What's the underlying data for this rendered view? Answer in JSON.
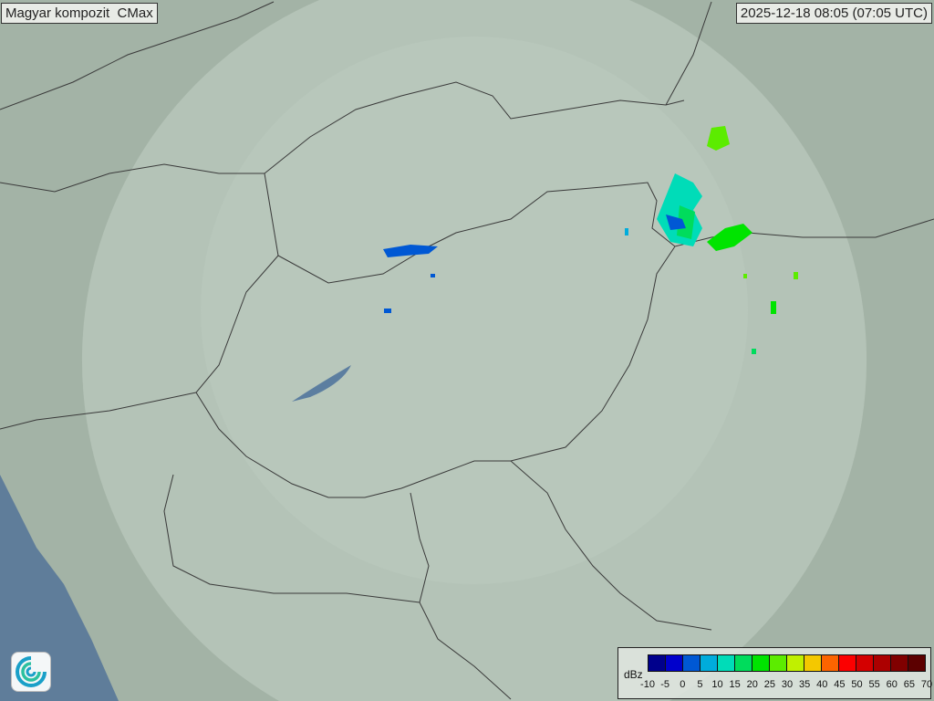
{
  "header": {
    "title": "Magyar kompozit  CMax",
    "timestamp": "2025-12-18 08:05 (07:05 UTC)"
  },
  "legend": {
    "unit": "dBz",
    "ticks": [
      "-10",
      "-5",
      "0",
      "5",
      "10",
      "15",
      "20",
      "25",
      "30",
      "35",
      "40",
      "45",
      "50",
      "55",
      "60",
      "65",
      "70"
    ],
    "colors": [
      "#00008c",
      "#0000cc",
      "#0058d4",
      "#00acdc",
      "#00dcb8",
      "#00dc5c",
      "#00e400",
      "#5cec00",
      "#c0f000",
      "#f4c800",
      "#fc6400",
      "#fc0000",
      "#d40000",
      "#ac0000",
      "#800000",
      "#5c0000"
    ]
  },
  "logo": {
    "icon": "weather-service-swirl-logo"
  }
}
